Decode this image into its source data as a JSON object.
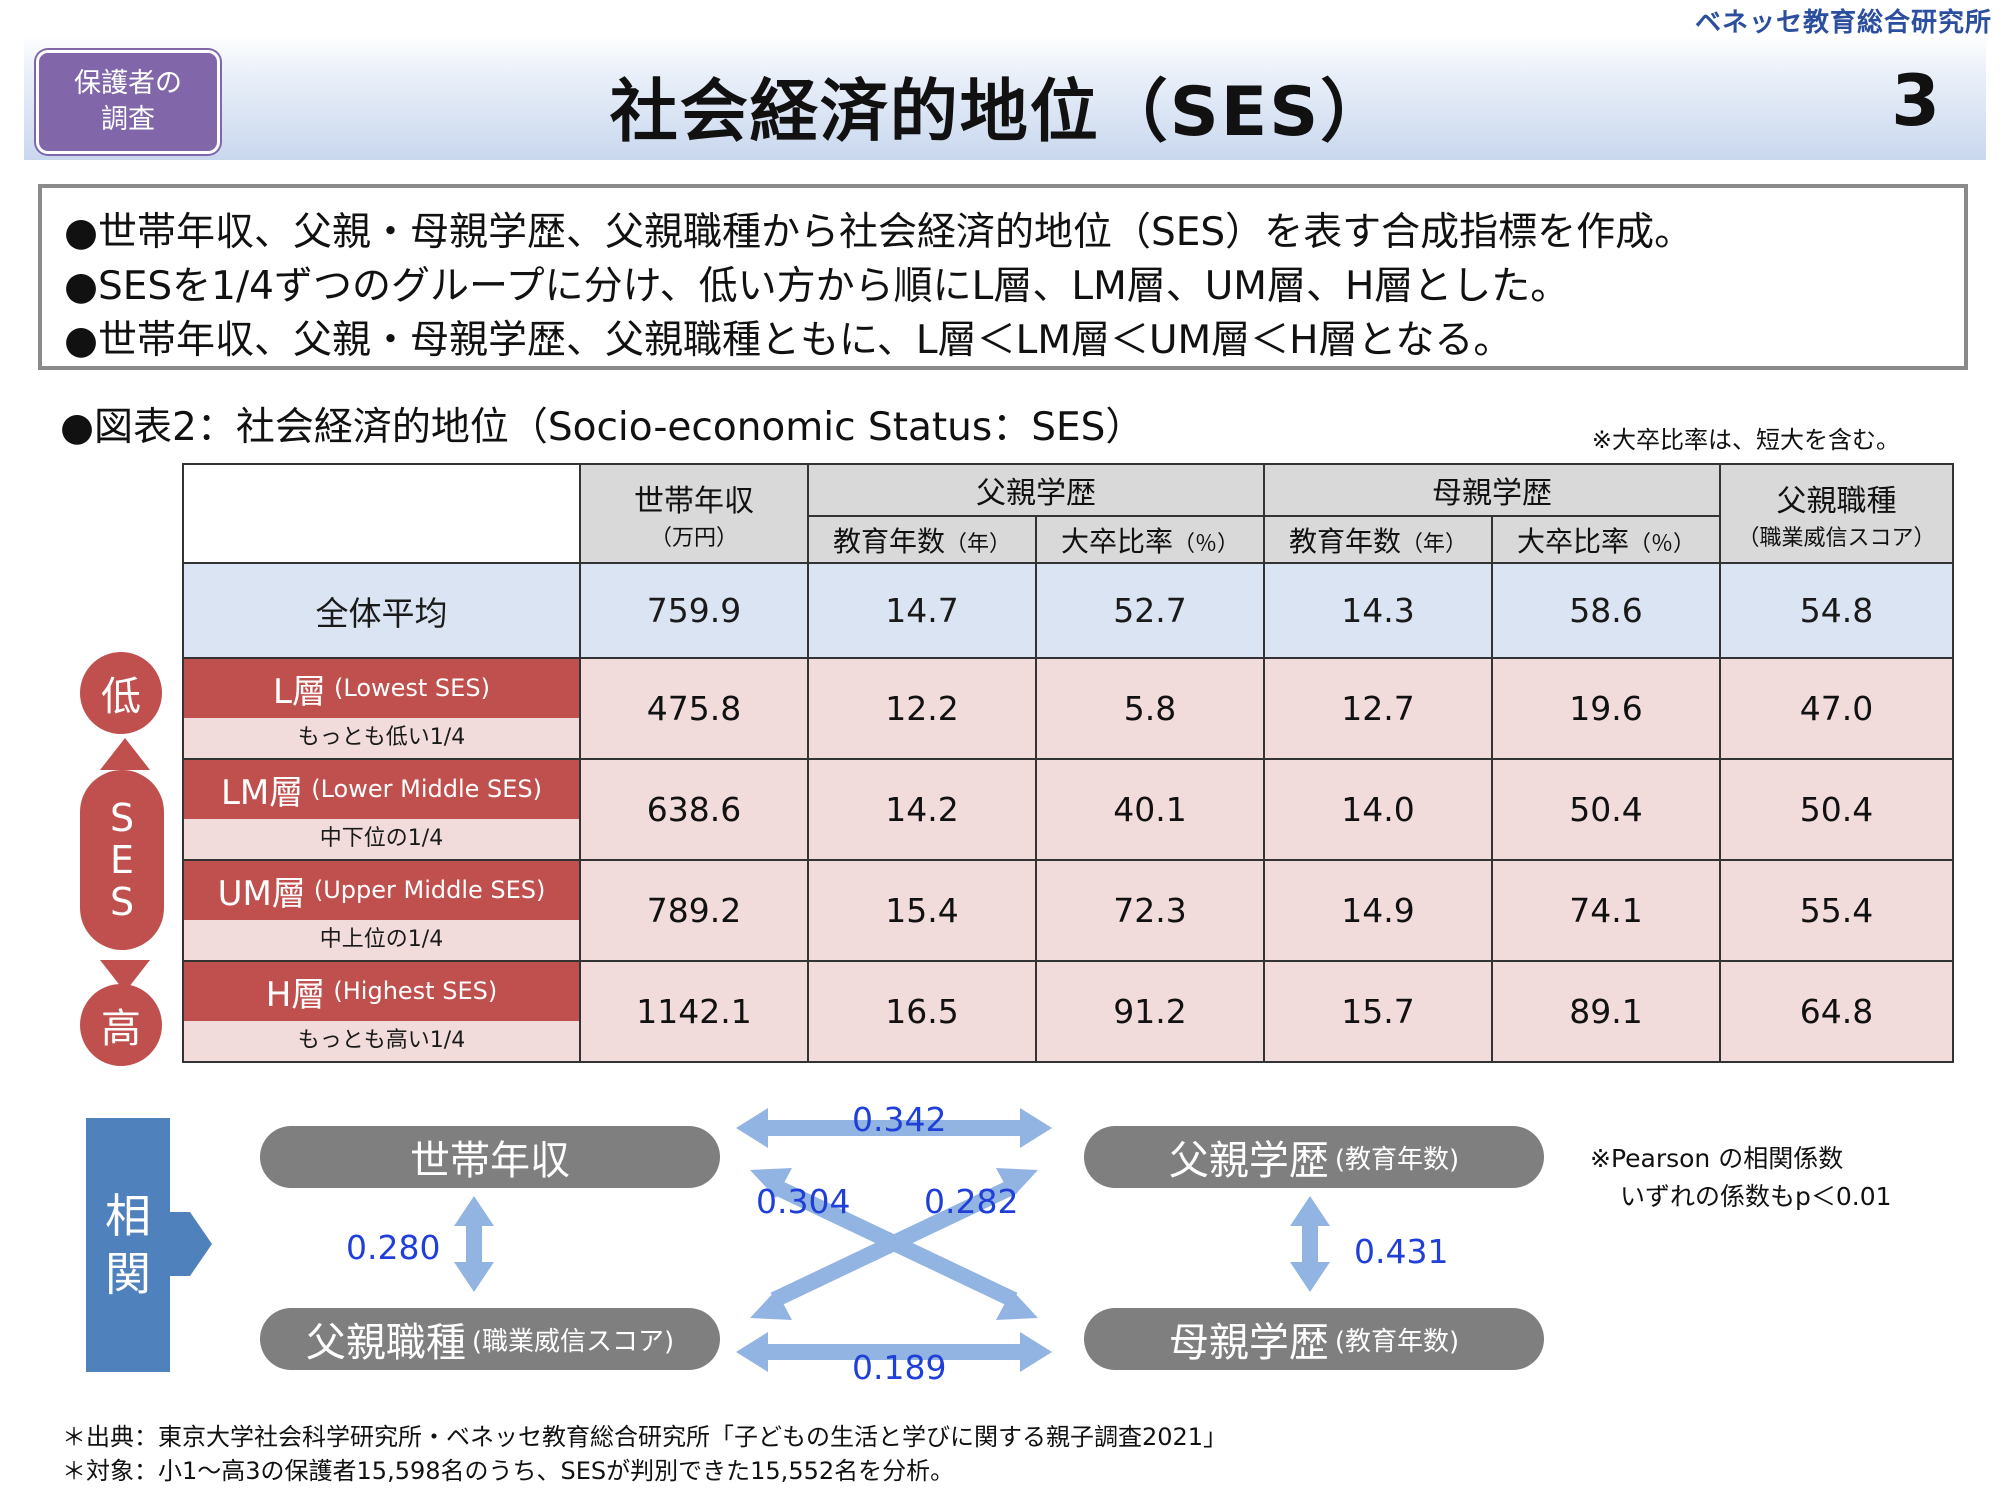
{
  "publisher": "ベネッセ教育総合研究所",
  "badge": {
    "line1": "保護者の",
    "line2": "調査"
  },
  "title": "社会経済的地位（SES）",
  "page_number": "3",
  "summary": [
    "●世帯年収、父親・母親学歴、父親職種から社会経済的地位（SES）を表す合成指標を作成。",
    "●SESを1/4ずつのグループに分け、低い方から順にL層、LM層、UM層、H層とした。",
    "●世帯年収、父親・母親学歴、父親職種ともに、L層＜LM層＜UM層＜H層となる。"
  ],
  "figure_title": "●図表2：社会経済的地位（Socio-economic Status：SES）",
  "figure_note": "※大卒比率は、短大を含む。",
  "table": {
    "headers": {
      "income": "世帯年収",
      "income_unit": "（万円）",
      "father_edu": "父親学歴",
      "mother_edu": "母親学歴",
      "father_job": "父親職種",
      "father_job_unit": "（職業威信スコア）",
      "years": "教育年数",
      "years_unit": "（年）",
      "ratio": "大卒比率",
      "ratio_unit": "（％）"
    },
    "average": {
      "label": "全体平均",
      "values": [
        "759.9",
        "14.7",
        "52.7",
        "14.3",
        "58.6",
        "54.8"
      ]
    },
    "layers": [
      {
        "name": "L層",
        "en": "(Lowest SES)",
        "desc": "もっとも低い1/4",
        "values": [
          "475.8",
          "12.2",
          "5.8",
          "12.7",
          "19.6",
          "47.0"
        ]
      },
      {
        "name": "LM層",
        "en": "(Lower Middle SES)",
        "desc": "中下位の1/4",
        "values": [
          "638.6",
          "14.2",
          "40.1",
          "14.0",
          "50.4",
          "50.4"
        ]
      },
      {
        "name": "UM層",
        "en": "(Upper Middle SES)",
        "desc": "中上位の1/4",
        "values": [
          "789.2",
          "15.4",
          "72.3",
          "14.9",
          "74.1",
          "55.4"
        ]
      },
      {
        "name": "H層",
        "en": "(Highest SES)",
        "desc": "もっとも高い1/4",
        "values": [
          "1142.1",
          "16.5",
          "91.2",
          "15.7",
          "89.1",
          "64.8"
        ]
      }
    ]
  },
  "scale": {
    "low": "低",
    "high": "高",
    "s1": "S",
    "s2": "E",
    "s3": "S"
  },
  "correlation": {
    "label1": "相",
    "label2": "関",
    "income": "世帯年収",
    "father_edu": "父親学歴",
    "father_edu_sub": "(教育年数)",
    "father_job": "父親職種",
    "father_job_sub": "(職業威信スコア)",
    "mother_edu": "母親学歴",
    "mother_edu_sub": "(教育年数)",
    "income_fedu": "0.342",
    "income_medu": "0.304",
    "fjob_fedu": "0.282",
    "income_fjob": "0.280",
    "fedu_medu": "0.431",
    "fjob_medu": "0.189",
    "note1": "※Pearson の相関係数",
    "note2": "いずれの係数もp＜0.01"
  },
  "footnotes": [
    "＊出典：東京大学社会科学研究所・ベネッセ教育総合研究所「子どもの生活と学びに関する親子調査2021」",
    "＊対象：小1～高3の保護者15,598名のうち、SESが判別できた15,552名を分析。"
  ]
}
